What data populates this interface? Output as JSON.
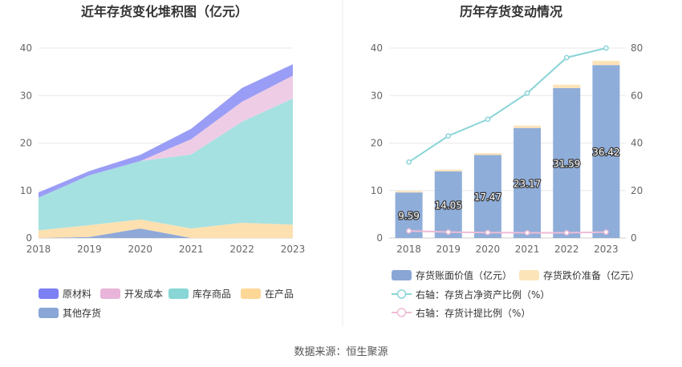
{
  "chart_data": [
    {
      "type": "area",
      "stacked": true,
      "title": "近年存货变化堆积图（亿元）",
      "x": [
        "2018",
        "2019",
        "2020",
        "2021",
        "2022",
        "2023"
      ],
      "ylim": [
        0,
        40
      ],
      "yticks": [
        "0",
        "10",
        "20",
        "30",
        "40"
      ],
      "grid": true,
      "legend_position": "bottom-left",
      "series": [
        {
          "name": "其他存货",
          "color": "#8fa8d8",
          "values": [
            0.0,
            0.2,
            2.0,
            0.0,
            0.0,
            0.0
          ]
        },
        {
          "name": "在产品",
          "color": "#fde0b0",
          "values": [
            1.6,
            2.5,
            1.9,
            2.0,
            3.2,
            2.8
          ]
        },
        {
          "name": "库存商品",
          "color": "#a6e1e1",
          "values": [
            6.9,
            10.5,
            12.3,
            15.6,
            21.3,
            26.6
          ]
        },
        {
          "name": "开发成本",
          "color": "#efcce6",
          "values": [
            0.0,
            0.0,
            0.0,
            3.2,
            4.2,
            4.8
          ]
        },
        {
          "name": "原材料",
          "color": "#9a9df5",
          "values": [
            1.1,
            0.9,
            1.3,
            2.2,
            2.9,
            2.4
          ]
        }
      ],
      "legend_order": [
        "原材料",
        "开发成本",
        "库存商品",
        "在产品",
        "其他存货"
      ]
    },
    {
      "type": "bar",
      "title": "历年存货变动情况",
      "categories": [
        "2018",
        "2019",
        "2020",
        "2021",
        "2022",
        "2023"
      ],
      "ylim": [
        0,
        40
      ],
      "yticks": [
        "0",
        "10",
        "20",
        "30",
        "40"
      ],
      "y2lim": [
        0,
        80
      ],
      "y2ticks": [
        "0",
        "20",
        "40",
        "60",
        "80"
      ],
      "grid": true,
      "legend_position": "bottom",
      "series": [
        {
          "name": "存货账面价值（亿元）",
          "color": "#8fadd9",
          "values": [
            9.59,
            14.05,
            17.47,
            23.17,
            31.59,
            36.42
          ],
          "labels": [
            "9.59",
            "14.05",
            "17.47",
            "23.17",
            "31.59",
            "36.42"
          ]
        },
        {
          "name": "存货跌价准备（亿元）",
          "color": "#fde4b8",
          "values": [
            0.3,
            0.35,
            0.4,
            0.5,
            0.7,
            0.9
          ]
        },
        {
          "name": "右轴：存货占净资产比例（%）",
          "color": "#8ad4d8",
          "axis": "right",
          "line": true,
          "values": [
            32,
            43,
            50,
            61,
            76,
            80
          ]
        },
        {
          "name": "右轴：存货计提比例（%）",
          "color": "#eebcd6",
          "axis": "right",
          "line": true,
          "values": [
            3,
            2.5,
            2.3,
            2.2,
            2.2,
            2.5
          ]
        }
      ]
    }
  ],
  "footer": {
    "source": "数据来源：恒生聚源"
  }
}
